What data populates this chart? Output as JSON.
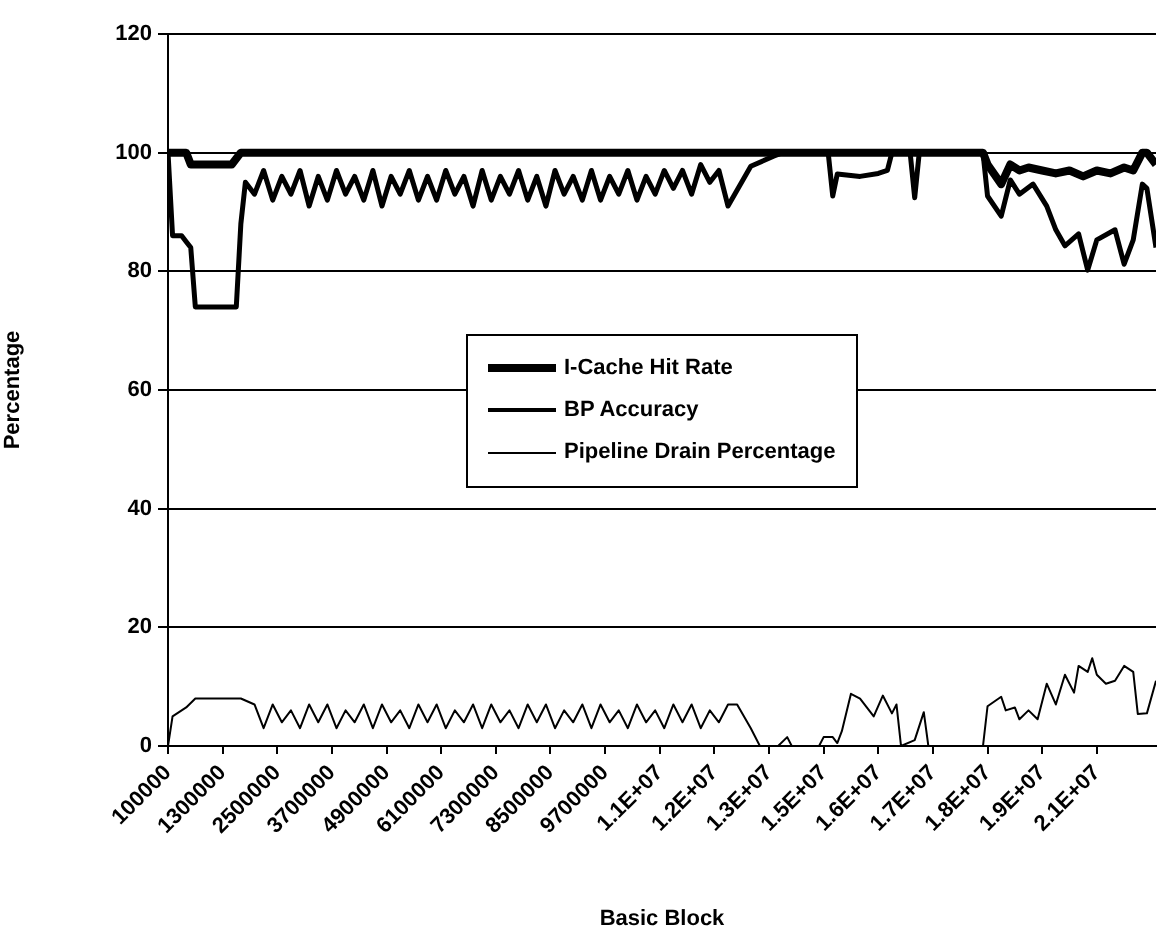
{
  "chart_data": {
    "type": "line",
    "xlabel": "Basic Block",
    "ylabel": "Percentage",
    "xlim": [
      100000,
      21800000
    ],
    "xticks": [
      {
        "value": 100000,
        "label": "100000"
      },
      {
        "value": 1300000,
        "label": "1300000"
      },
      {
        "value": 2500000,
        "label": "2500000"
      },
      {
        "value": 3700000,
        "label": "3700000"
      },
      {
        "value": 4900000,
        "label": "4900000"
      },
      {
        "value": 6100000,
        "label": "6100000"
      },
      {
        "value": 7300000,
        "label": "7300000"
      },
      {
        "value": 8500000,
        "label": "8500000"
      },
      {
        "value": 9700000,
        "label": "9700000"
      },
      {
        "value": 10900000,
        "label": "1.1E+07"
      },
      {
        "value": 12100000,
        "label": "1.2E+07"
      },
      {
        "value": 13300000,
        "label": "1.3E+07"
      },
      {
        "value": 14500000,
        "label": "1.5E+07"
      },
      {
        "value": 15700000,
        "label": "1.6E+07"
      },
      {
        "value": 16900000,
        "label": "1.7E+07"
      },
      {
        "value": 18100000,
        "label": "1.8E+07"
      },
      {
        "value": 19300000,
        "label": "1.9E+07"
      },
      {
        "value": 20500000,
        "label": "2.1E+07"
      }
    ],
    "ylim": [
      0,
      120
    ],
    "yticks": [
      0,
      20,
      40,
      60,
      80,
      100,
      120
    ],
    "grid": "y",
    "legend": "center",
    "marker": "none",
    "line_style": "solid",
    "series": [
      {
        "name": "I-Cache Hit Rate",
        "color": "#000000",
        "x": [
          100000,
          500000,
          600000,
          1500000,
          1700000,
          18000000,
          18100000,
          18400000,
          18600000,
          18800000,
          19000000,
          19300000,
          19600000,
          19900000,
          20200000,
          20500000,
          20800000,
          21100000,
          21300000,
          21500000,
          21600000,
          21800000
        ],
        "values": [
          100,
          100,
          98,
          98,
          100,
          100,
          98,
          94.7,
          98,
          97,
          97.5,
          97,
          96.5,
          97,
          96,
          97,
          96.5,
          97.5,
          97,
          100,
          100,
          98
        ]
      },
      {
        "name": "BP Accuracy",
        "color": "#000000",
        "x": [
          100000,
          200000,
          400000,
          500000,
          600000,
          700000,
          1500000,
          1600000,
          1700000,
          1800000,
          2000000,
          2200000,
          2400000,
          2600000,
          2800000,
          3000000,
          3200000,
          3400000,
          3600000,
          3800000,
          4000000,
          4200000,
          4400000,
          4600000,
          4800000,
          5000000,
          5200000,
          5400000,
          5600000,
          5800000,
          6000000,
          6200000,
          6400000,
          6600000,
          6800000,
          7000000,
          7200000,
          7400000,
          7600000,
          7800000,
          8000000,
          8200000,
          8400000,
          8600000,
          8800000,
          9000000,
          9200000,
          9400000,
          9600000,
          9800000,
          10000000,
          10200000,
          10400000,
          10600000,
          10800000,
          11000000,
          11200000,
          11400000,
          11600000,
          11800000,
          12000000,
          12200000,
          12400000,
          12900000,
          13400000,
          13600000,
          14600000,
          14700000,
          14800000,
          15300000,
          15700000,
          15900000,
          16000000,
          16400000,
          16500000,
          16600000,
          18000000,
          18100000,
          18400000,
          18600000,
          18800000,
          19100000,
          19400000,
          19600000,
          19800000,
          20100000,
          20300000,
          20500000,
          20900000,
          21100000,
          21300000,
          21500000,
          21600000,
          21800000
        ],
        "values": [
          100,
          86,
          86,
          85,
          84,
          74,
          74,
          74,
          88,
          95,
          93,
          97,
          92,
          96,
          93,
          97,
          91,
          96,
          92,
          97,
          93,
          96,
          92,
          97,
          91,
          96,
          93,
          97,
          92,
          96,
          92,
          97,
          93,
          96,
          91,
          97,
          92,
          96,
          93,
          97,
          92,
          96,
          91,
          97,
          93,
          96,
          92,
          97,
          92,
          96,
          93,
          97,
          92,
          96,
          93,
          97,
          94,
          97,
          93,
          98,
          95,
          97,
          91,
          97.7,
          99.4,
          100,
          100,
          92.7,
          96.4,
          96,
          96.5,
          97,
          100,
          100,
          92.4,
          100,
          100,
          92.7,
          89.3,
          95.4,
          93,
          94.7,
          91,
          87,
          84.3,
          86.3,
          80.2,
          85.3,
          87,
          81.2,
          85.3,
          94.7,
          94,
          84
        ]
      },
      {
        "name": "Pipeline Drain Percentage",
        "color": "#000000",
        "x": [
          100000,
          200000,
          400000,
          500000,
          700000,
          1500000,
          1700000,
          2000000,
          2200000,
          2400000,
          2600000,
          2800000,
          3000000,
          3200000,
          3400000,
          3600000,
          3800000,
          4000000,
          4200000,
          4400000,
          4600000,
          4800000,
          5000000,
          5200000,
          5400000,
          5600000,
          5800000,
          6000000,
          6200000,
          6400000,
          6600000,
          6800000,
          7000000,
          7200000,
          7400000,
          7600000,
          7800000,
          8000000,
          8200000,
          8400000,
          8600000,
          8800000,
          9000000,
          9200000,
          9400000,
          9600000,
          9800000,
          10000000,
          10200000,
          10400000,
          10600000,
          10800000,
          11000000,
          11200000,
          11400000,
          11600000,
          11800000,
          12000000,
          12200000,
          12400000,
          12600000,
          12900000,
          13100000,
          13500000,
          13700000,
          13800000,
          14400000,
          14500000,
          14700000,
          14800000,
          14900000,
          15100000,
          15300000,
          15600000,
          15800000,
          16000000,
          16100000,
          16200000,
          16500000,
          16700000,
          16800000,
          18000000,
          18100000,
          18400000,
          18500000,
          18700000,
          18800000,
          19000000,
          19200000,
          19400000,
          19600000,
          19800000,
          20000000,
          20100000,
          20300000,
          20400000,
          20500000,
          20700000,
          20900000,
          21100000,
          21300000,
          21400000,
          21600000,
          21800000
        ],
        "values": [
          0,
          5,
          6,
          6.5,
          8,
          8,
          8,
          7,
          3,
          7,
          4,
          6,
          3,
          7,
          4,
          7,
          3,
          6,
          4,
          7,
          3,
          7,
          4,
          6,
          3,
          7,
          4,
          7,
          3,
          6,
          4,
          7,
          3,
          7,
          4,
          6,
          3,
          7,
          4,
          7,
          3,
          6,
          4,
          7,
          3,
          7,
          4,
          6,
          3,
          7,
          4,
          6,
          3,
          7,
          4,
          7,
          3,
          6,
          4,
          7,
          7,
          3,
          0,
          0,
          1.5,
          0,
          0,
          1.5,
          1.5,
          0.5,
          2.5,
          8.8,
          8,
          5,
          8.5,
          5.5,
          7,
          0,
          1,
          5.7,
          0,
          0,
          6.7,
          8.3,
          6,
          6.5,
          4.5,
          6,
          4.5,
          10.5,
          7,
          12,
          9,
          13.5,
          12.5,
          14.8,
          12,
          10.5,
          11,
          13.5,
          12.5,
          5.4,
          5.5,
          11
        ]
      }
    ]
  }
}
